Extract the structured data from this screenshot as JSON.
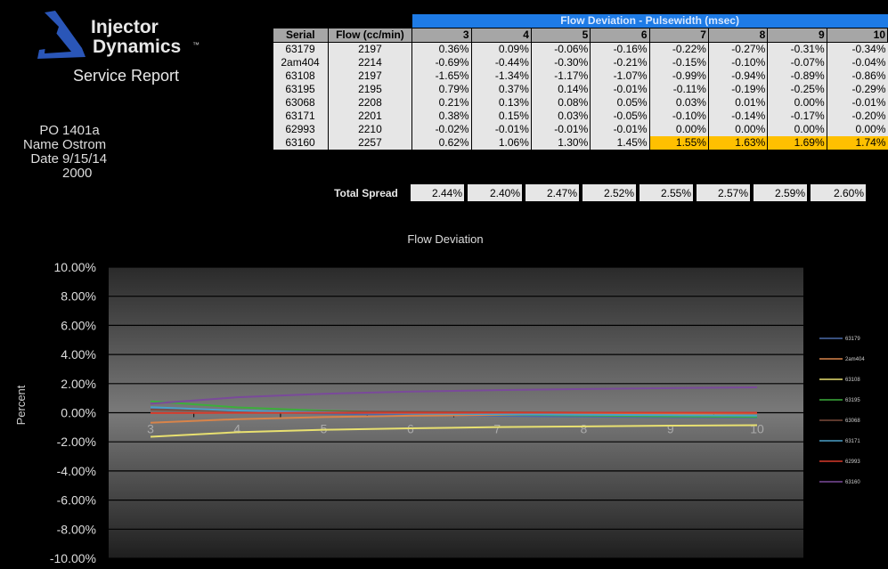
{
  "header": {
    "brand_line1": "Injector",
    "brand_line2": "Dynamics",
    "trademark": "™",
    "subtitle": "Service Report"
  },
  "info": {
    "po_label": "PO",
    "po_value": "1401a",
    "name_label": "Name",
    "name_value": "Ostrom",
    "date_label": "Date",
    "date_value": "9/15/14",
    "extra_value": "2000"
  },
  "table": {
    "banner": "Flow Deviation - Pulsewidth (msec)",
    "col_serial": "Serial",
    "col_flow": "Flow (cc/min)",
    "pulsewidths": [
      "3",
      "4",
      "5",
      "6",
      "7",
      "8",
      "9",
      "10"
    ],
    "rows": [
      {
        "serial": "63179",
        "flow": "2197",
        "values": [
          "0.36%",
          "0.09%",
          "-0.06%",
          "-0.16%",
          "-0.22%",
          "-0.27%",
          "-0.31%",
          "-0.34%"
        ]
      },
      {
        "serial": "2am404",
        "flow": "2214",
        "values": [
          "-0.69%",
          "-0.44%",
          "-0.30%",
          "-0.21%",
          "-0.15%",
          "-0.10%",
          "-0.07%",
          "-0.04%"
        ]
      },
      {
        "serial": "63108",
        "flow": "2197",
        "values": [
          "-1.65%",
          "-1.34%",
          "-1.17%",
          "-1.07%",
          "-0.99%",
          "-0.94%",
          "-0.89%",
          "-0.86%"
        ]
      },
      {
        "serial": "63195",
        "flow": "2195",
        "values": [
          "0.79%",
          "0.37%",
          "0.14%",
          "-0.01%",
          "-0.11%",
          "-0.19%",
          "-0.25%",
          "-0.29%"
        ]
      },
      {
        "serial": "63068",
        "flow": "2208",
        "values": [
          "0.21%",
          "0.13%",
          "0.08%",
          "0.05%",
          "0.03%",
          "0.01%",
          "0.00%",
          "-0.01%"
        ]
      },
      {
        "serial": "63171",
        "flow": "2201",
        "values": [
          "0.38%",
          "0.15%",
          "0.03%",
          "-0.05%",
          "-0.10%",
          "-0.14%",
          "-0.17%",
          "-0.20%"
        ]
      },
      {
        "serial": "62993",
        "flow": "2210",
        "values": [
          "-0.02%",
          "-0.01%",
          "-0.01%",
          "-0.01%",
          "0.00%",
          "0.00%",
          "0.00%",
          "0.00%"
        ]
      },
      {
        "serial": "63160",
        "flow": "2257",
        "values": [
          "0.62%",
          "1.06%",
          "1.30%",
          "1.45%",
          "1.55%",
          "1.63%",
          "1.69%",
          "1.74%"
        ],
        "highlight_from": 4
      }
    ],
    "highlight_color": "#ffc000",
    "banner_color": "#1e7be6",
    "total_label": "Total Spread",
    "total_values": [
      "2.44%",
      "2.40%",
      "2.47%",
      "2.52%",
      "2.55%",
      "2.57%",
      "2.59%",
      "2.60%"
    ]
  },
  "chart_data": {
    "type": "line",
    "title": "Flow Deviation",
    "ylabel": "Percent",
    "xlabel": "",
    "categories": [
      "3",
      "4",
      "5",
      "6",
      "7",
      "8",
      "9",
      "10"
    ],
    "ylim": [
      -10,
      10
    ],
    "yticks": [
      "10.00%",
      "8.00%",
      "6.00%",
      "4.00%",
      "2.00%",
      "0.00%",
      "-2.00%",
      "-4.00%",
      "-6.00%",
      "-8.00%",
      "-10.00%"
    ],
    "grid": true,
    "legend": "right",
    "series": [
      {
        "name": "63179",
        "color": "#4a6aa8",
        "values": [
          0.36,
          0.09,
          -0.06,
          -0.16,
          -0.22,
          -0.27,
          -0.31,
          -0.34
        ]
      },
      {
        "name": "2am404",
        "color": "#d8844a",
        "values": [
          -0.69,
          -0.44,
          -0.3,
          -0.21,
          -0.15,
          -0.1,
          -0.07,
          -0.04
        ]
      },
      {
        "name": "63108",
        "color": "#e8e070",
        "values": [
          -1.65,
          -1.34,
          -1.17,
          -1.07,
          -0.99,
          -0.94,
          -0.89,
          -0.86
        ]
      },
      {
        "name": "63195",
        "color": "#3cae3c",
        "values": [
          0.79,
          0.37,
          0.14,
          -0.01,
          -0.11,
          -0.19,
          -0.25,
          -0.29
        ]
      },
      {
        "name": "63068",
        "color": "#7a4a3a",
        "values": [
          0.21,
          0.13,
          0.08,
          0.05,
          0.03,
          0.01,
          0.0,
          -0.01
        ]
      },
      {
        "name": "63171",
        "color": "#4aa0c8",
        "values": [
          0.38,
          0.15,
          0.03,
          -0.05,
          -0.1,
          -0.14,
          -0.17,
          -0.2
        ]
      },
      {
        "name": "62993",
        "color": "#d83a2a",
        "values": [
          -0.02,
          -0.01,
          -0.01,
          -0.01,
          0.0,
          0.0,
          0.0,
          0.0
        ]
      },
      {
        "name": "63160",
        "color": "#7a4a9a",
        "values": [
          0.62,
          1.06,
          1.3,
          1.45,
          1.55,
          1.63,
          1.69,
          1.74
        ]
      }
    ]
  }
}
